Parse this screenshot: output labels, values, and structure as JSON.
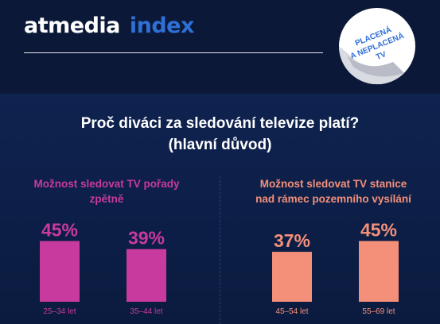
{
  "logo": {
    "part_a": "atmedia",
    "part_b": "index"
  },
  "sticker": {
    "line1": "PLACENÁ",
    "line2": "A NEPLACENÁ",
    "line3": "TV"
  },
  "title": {
    "line1": "Proč diváci za sledování televize platí?",
    "line2": "(hlavní důvod)"
  },
  "colors": {
    "background": "#0d1f45",
    "left_accent": "#c93a9e",
    "right_accent": "#f4907a"
  },
  "chart_data": [
    {
      "type": "bar",
      "subtitle": [
        "Možnost sledovat TV pořady",
        "zpětně"
      ],
      "categories": [
        "25–34 let",
        "35–44 let"
      ],
      "values": [
        45,
        39
      ],
      "value_labels": [
        "45%",
        "39%"
      ],
      "color": "#c93a9e",
      "ylim": [
        0,
        50
      ]
    },
    {
      "type": "bar",
      "subtitle": [
        "Možnost sledovat TV stanice",
        "nad rámec pozemního vysílání"
      ],
      "categories": [
        "45–54 let",
        "55–69 let"
      ],
      "values": [
        37,
        45
      ],
      "value_labels": [
        "37%",
        "45%"
      ],
      "color": "#f4907a",
      "ylim": [
        0,
        50
      ]
    }
  ]
}
